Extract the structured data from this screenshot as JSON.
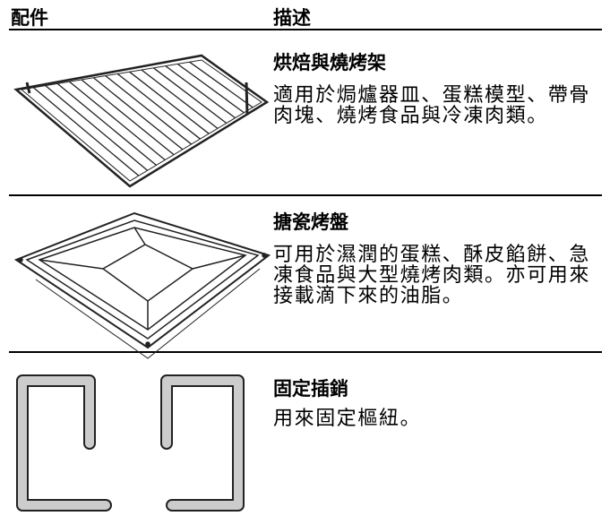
{
  "header": {
    "columns": [
      "配件",
      "描述"
    ]
  },
  "rows": [
    {
      "title": "烘焙與燒烤架",
      "description": "適用於焗爐器皿、蛋糕模型、帶骨肉塊、燒烤食品與冷凍肉類。"
    },
    {
      "title": "搪瓷烤盤",
      "description": "可用於濕潤的蛋糕、酥皮餡餅、急凍食品與大型燒烤肉類。亦可用來接載滴下來的油脂。"
    },
    {
      "title": "固定插銷",
      "description": "用來固定樞紐。"
    }
  ]
}
